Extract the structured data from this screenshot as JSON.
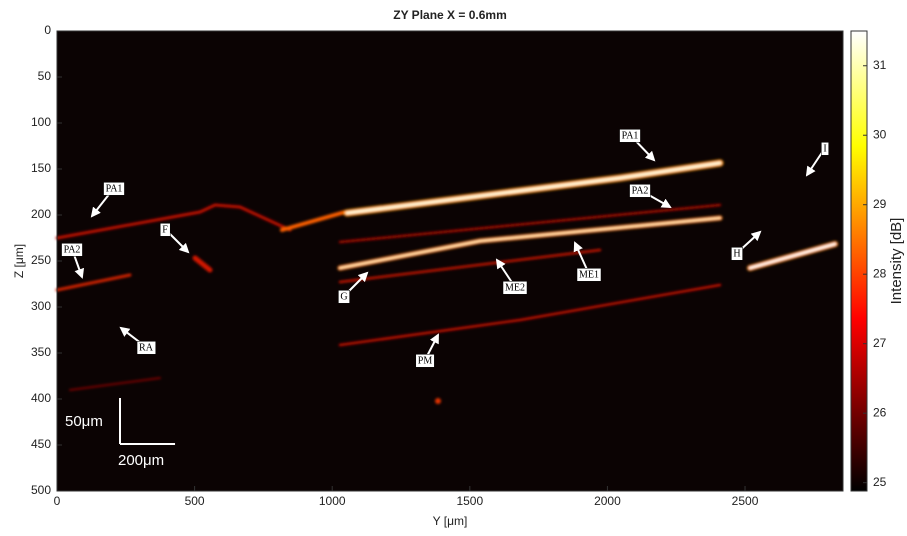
{
  "chart_data": {
    "type": "heatmap",
    "title": "ZY Plane X = 0.6mm",
    "x_label": "Y [μm]",
    "y_label": "Z [μm]",
    "xlim": [
      0,
      2856
    ],
    "xticks": [
      0,
      500,
      1000,
      1500,
      2000,
      2500
    ],
    "ylim": [
      0,
      500
    ],
    "yticks": [
      0,
      50,
      100,
      150,
      200,
      250,
      300,
      350,
      400,
      450,
      500
    ],
    "y_reversed": true,
    "colorbar": {
      "label": "Intensity [dB]",
      "lim": [
        24.88,
        31.5
      ],
      "ticks": [
        25,
        26,
        27,
        28,
        29,
        30,
        31
      ],
      "colormap": "hot"
    },
    "scale_bar": {
      "x_length": 200,
      "x_label": "200μm",
      "y_length": 50,
      "y_label": "50μm"
    },
    "annotations": [
      "PA1",
      "PA2",
      "F",
      "RA",
      "G",
      "ME2",
      "PM",
      "ME1",
      "PA1",
      "PA2",
      "H",
      "I"
    ]
  }
}
